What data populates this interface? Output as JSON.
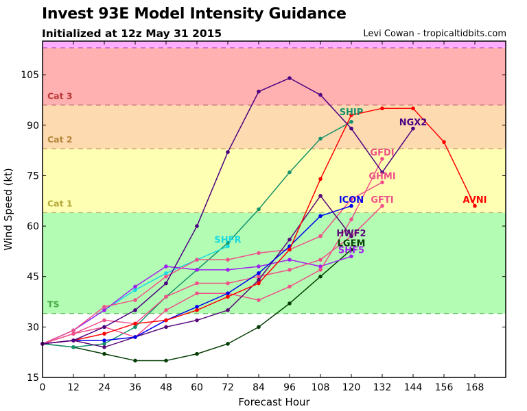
{
  "chart_data": {
    "type": "line",
    "title": "Invest 93E Model Intensity Guidance",
    "subtitle": "Initialized at 12z May 31 2015",
    "credit": "Levi Cowan - tropicaltidbits.com",
    "xlabel": "Forecast Hour",
    "ylabel": "Wind Speed (kt)",
    "xlim": [
      0,
      180
    ],
    "ylim": [
      15,
      115
    ],
    "xticks": [
      0,
      12,
      24,
      36,
      48,
      60,
      72,
      84,
      96,
      108,
      120,
      132,
      144,
      156,
      168
    ],
    "yticks": [
      15,
      30,
      45,
      60,
      75,
      90,
      105
    ],
    "grid": false,
    "bands": [
      {
        "name": "TD",
        "label": "",
        "from": 15,
        "to": 34,
        "color": "#ffffff",
        "line_color": "#ffffff"
      },
      {
        "name": "TS",
        "label": "TS",
        "from": 34,
        "to": 64,
        "color": "#b3fcb3",
        "line_color": "#6cc46c",
        "label_color": "#44aa44"
      },
      {
        "name": "Cat 1",
        "label": "Cat 1",
        "from": 64,
        "to": 83,
        "color": "#ffffb3",
        "line_color": "#b8b06a",
        "label_color": "#b5a83a"
      },
      {
        "name": "Cat 2",
        "label": "Cat 2",
        "from": 83,
        "to": 96,
        "color": "#fedab0",
        "line_color": "#c09a60",
        "label_color": "#b5853a"
      },
      {
        "name": "Cat 3",
        "label": "Cat 3",
        "from": 96,
        "to": 113,
        "color": "#ffb0b0",
        "line_color": "#c07070",
        "label_color": "#b83838"
      },
      {
        "name": "Cat 4",
        "label": "",
        "from": 113,
        "to": 115,
        "color": "#ffaeff",
        "line_color": "#c060c0"
      }
    ],
    "x": [
      0,
      12,
      24,
      36,
      48,
      60,
      72,
      84,
      96,
      108,
      120,
      132,
      144,
      156,
      168
    ],
    "series": [
      {
        "name": "LGEM",
        "color": "#033d03",
        "values": [
          25,
          24,
          22,
          20,
          20,
          22,
          25,
          30,
          37,
          45,
          53
        ]
      },
      {
        "name": "SHIP",
        "color": "#14906a",
        "values": [
          25,
          24,
          25,
          30,
          39,
          47,
          55,
          65,
          76,
          86,
          91
        ]
      },
      {
        "name": "SHFR",
        "color": "#1adbe0",
        "values": [
          25,
          29,
          35,
          41,
          46,
          50,
          54
        ]
      },
      {
        "name": "SHF5",
        "color": "#a020f0",
        "values": [
          25,
          29,
          35,
          42,
          48,
          47,
          47,
          48,
          50,
          48,
          51
        ]
      },
      {
        "name": "GFTI",
        "color": "#f0508a",
        "values": [
          25,
          28,
          32,
          31,
          39,
          43,
          43,
          45,
          47,
          50,
          57,
          66
        ]
      },
      {
        "name": "GHMI",
        "color": "#f0508a",
        "values": [
          25,
          29,
          36,
          38,
          45,
          50,
          50,
          52,
          53,
          57,
          68,
          73
        ]
      },
      {
        "name": "GFDI",
        "color": "#f0508a",
        "values": [
          25,
          28,
          30,
          27,
          35,
          40,
          40,
          38,
          42,
          47,
          62,
          80
        ]
      },
      {
        "name": "HWF2",
        "color": "#5a0a7a",
        "values": [
          25,
          26,
          24,
          27,
          30,
          32,
          35,
          44,
          56,
          69,
          57
        ]
      },
      {
        "name": "ICON",
        "color": "#0000ee",
        "values": [
          25,
          26,
          26,
          27,
          32,
          36,
          40,
          46,
          54,
          63,
          66
        ]
      },
      {
        "name": "AVNI",
        "color": "#ff0000",
        "values": [
          25,
          26,
          28,
          31,
          32,
          35,
          39,
          43,
          53,
          74,
          93,
          95,
          95,
          85,
          66
        ]
      },
      {
        "name": "NGX2",
        "color": "#4b0082",
        "values": [
          25,
          26,
          30,
          35,
          43,
          60,
          82,
          100,
          104,
          99,
          89,
          76,
          89
        ]
      }
    ],
    "annotations": [
      {
        "text": "SHIP",
        "series": "SHIP",
        "color": "#14906a",
        "at_x": 120,
        "at_y": 94
      },
      {
        "text": "NGX2",
        "series": "NGX2",
        "color": "#4b0082",
        "at_x": 144,
        "at_y": 91
      },
      {
        "text": "GFDI",
        "series": "GFDI",
        "color": "#f0508a",
        "at_x": 132,
        "at_y": 82
      },
      {
        "text": "GHMI",
        "series": "GHMI",
        "color": "#f0508a",
        "at_x": 132,
        "at_y": 75
      },
      {
        "text": "ICON",
        "series": "ICON",
        "color": "#0000ee",
        "at_x": 120,
        "at_y": 68
      },
      {
        "text": "GFTI",
        "series": "GFTI",
        "color": "#f0508a",
        "at_x": 132,
        "at_y": 68
      },
      {
        "text": "AVNI",
        "series": "AVNI",
        "color": "#ff0000",
        "at_x": 168,
        "at_y": 68
      },
      {
        "text": "SHFR",
        "series": "SHFR",
        "color": "#1adbe0",
        "at_x": 72,
        "at_y": 56
      },
      {
        "text": "HWF2",
        "series": "HWF2",
        "color": "#5a0a7a",
        "at_x": 120,
        "at_y": 58
      },
      {
        "text": "LGEM",
        "series": "LGEM",
        "color": "#033d03",
        "at_x": 120,
        "at_y": 55
      },
      {
        "text": "SHF5",
        "series": "SHF5",
        "color": "#a020f0",
        "at_x": 120,
        "at_y": 53
      }
    ]
  }
}
